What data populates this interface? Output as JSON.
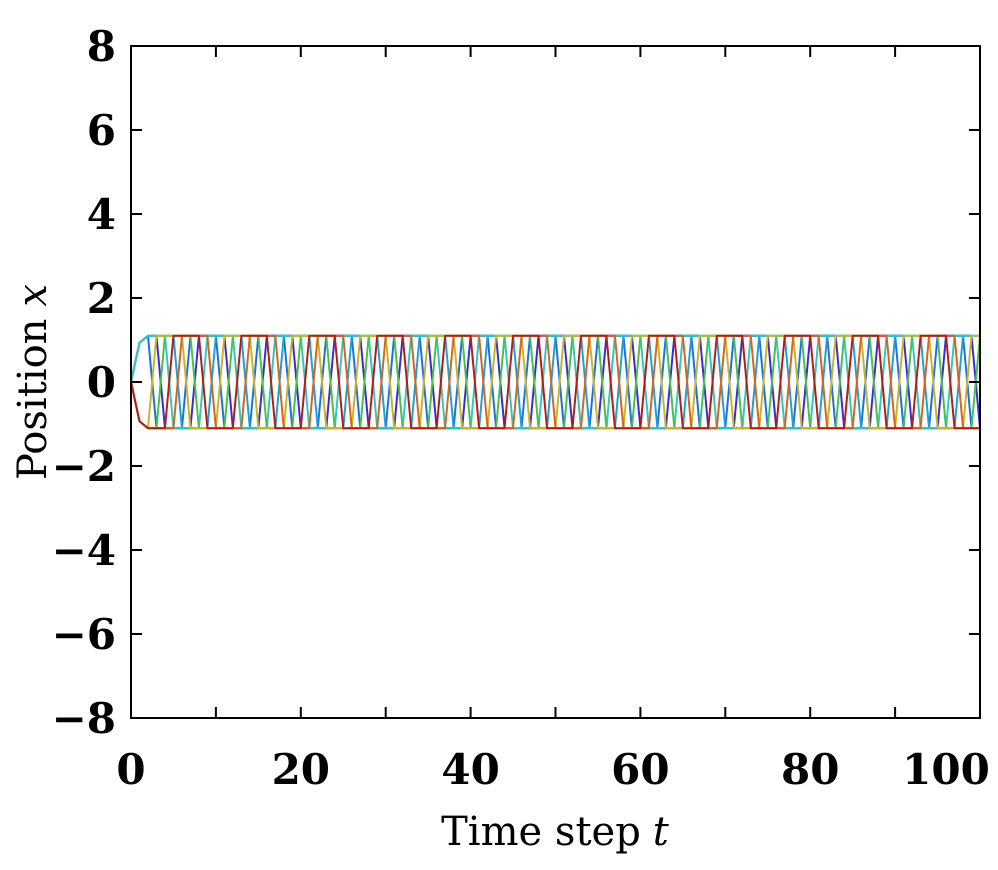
{
  "chart_data": {
    "type": "line",
    "title": "",
    "xlabel": "Time step",
    "xlabel_var": "t",
    "ylabel": "Position",
    "ylabel_var": "x",
    "xlim": [
      0,
      100
    ],
    "ylim": [
      -8,
      8
    ],
    "x_ticks": [
      "0",
      "20",
      "40",
      "60",
      "80",
      "100"
    ],
    "y_ticks": [
      "8",
      "6",
      "4",
      "2",
      "0",
      "−2",
      "−4",
      "−6",
      "−8"
    ],
    "grid": false,
    "legend": "none",
    "amplitude": 1.1,
    "series_count": 8,
    "series_colors": [
      "#3b2bd6",
      "#1e6fe0",
      "#1aa3d8",
      "#35c6c0",
      "#49c14a",
      "#c8b62a",
      "#d9641c",
      "#b01e14"
    ],
    "series_start_direction": [
      1,
      1,
      1,
      1,
      -1,
      -1,
      -1,
      -1
    ]
  }
}
